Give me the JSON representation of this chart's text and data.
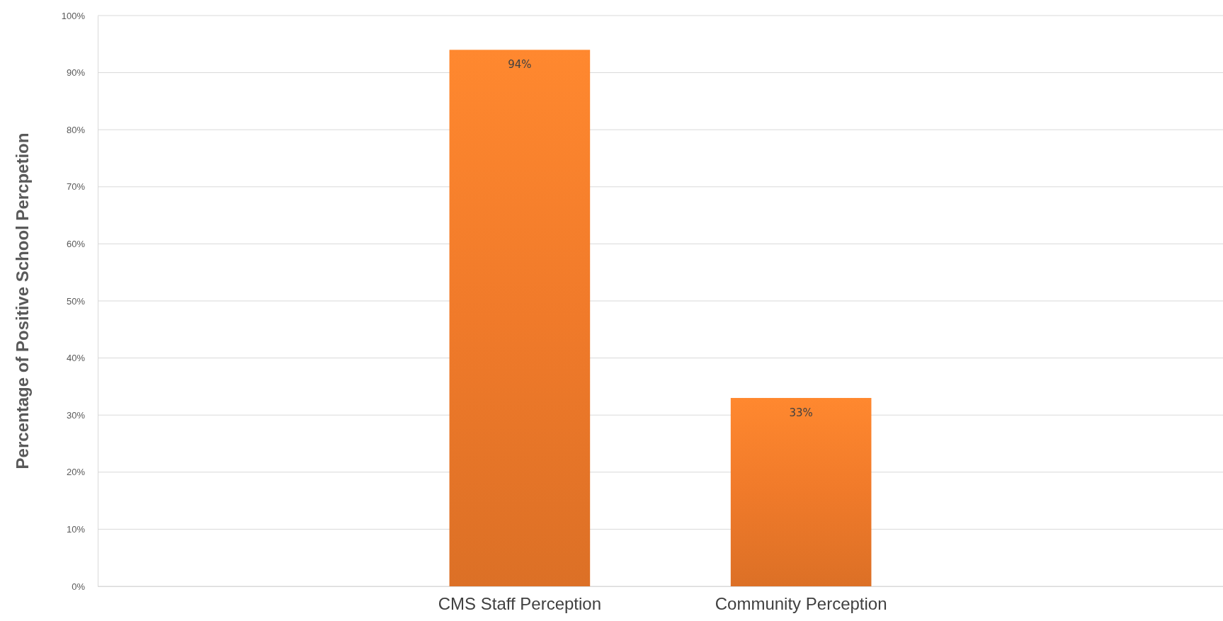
{
  "chart_data": {
    "type": "bar",
    "ylabel": "Percentage of Positive School Percpetion",
    "categories": [
      null,
      "CMS Staff Perception",
      "Community Perception",
      null
    ],
    "values": [
      null,
      94,
      33,
      null
    ],
    "color": "#f07a2a",
    "ylim": [
      0,
      100
    ],
    "yticks": [
      {
        "value": 0,
        "label": "0%"
      },
      {
        "value": 10,
        "label": "10%"
      },
      {
        "value": 20,
        "label": "20%"
      },
      {
        "value": 30,
        "label": "30%"
      },
      {
        "value": 40,
        "label": "40%"
      },
      {
        "value": 50,
        "label": "50%"
      },
      {
        "value": 60,
        "label": "60%"
      },
      {
        "value": 70,
        "label": "70%"
      },
      {
        "value": 80,
        "label": "80%"
      },
      {
        "value": 90,
        "label": "90%"
      },
      {
        "value": 100,
        "label": "100%"
      }
    ],
    "grid": "y",
    "value_labels": [
      null,
      "94%",
      "33%",
      null
    ]
  }
}
